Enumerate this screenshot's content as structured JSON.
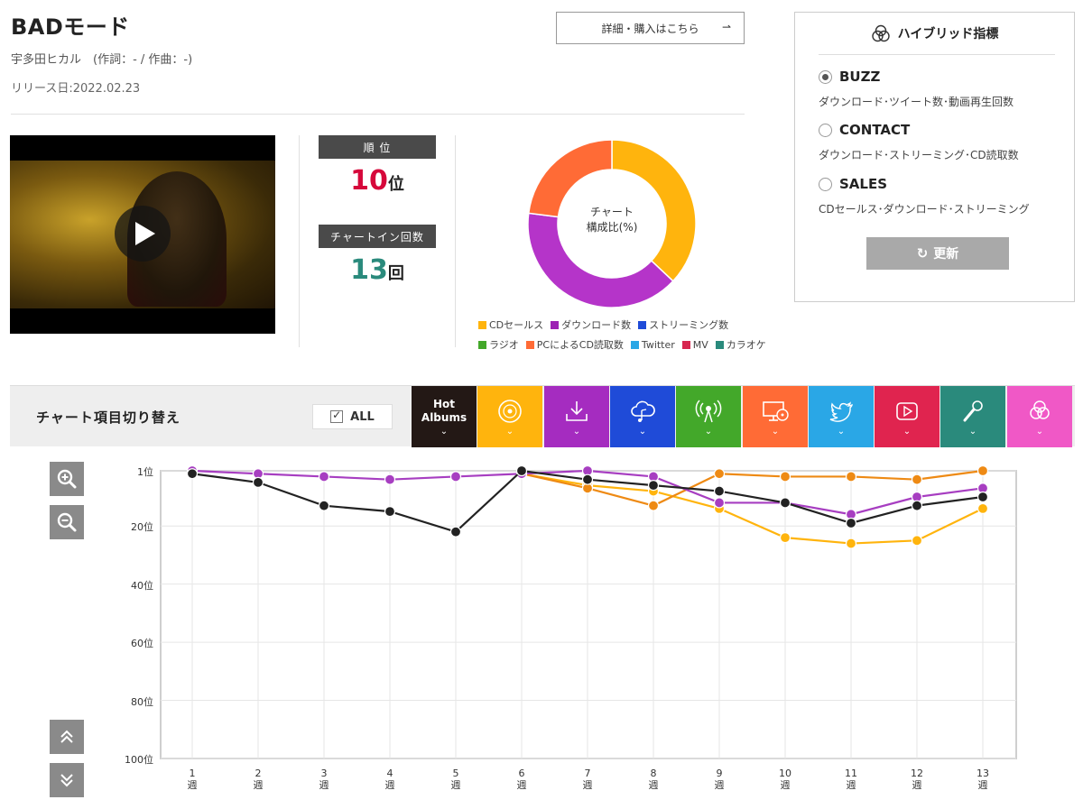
{
  "song": {
    "title": "BADモード",
    "artist_line": "宇多田ヒカル　(作詞：- / 作曲：-)",
    "release": "リリース日:2022.02.23"
  },
  "detail_button": {
    "label": "詳細・購入はこちら",
    "arrow": "⇀"
  },
  "stats": {
    "rank_label": "順 位",
    "rank_value": "10",
    "rank_unit": "位",
    "chartin_label": "チャートイン回数",
    "chartin_value": "13",
    "chartin_unit": "回",
    "rank_color": "#d6083b",
    "chartin_color": "#2a8a7c"
  },
  "donut": {
    "center_line1": "チャート",
    "center_line2": "構成比(%)",
    "slices": [
      {
        "label": "CDセールス",
        "value": 37,
        "color": "#ffb40d"
      },
      {
        "label": "ダウンロード数",
        "value": 40,
        "color": "#b534c9"
      },
      {
        "label": "PCによるCD読取数",
        "value": 23,
        "color": "#ff6b36"
      }
    ]
  },
  "legend": [
    [
      {
        "label": "CDセールス",
        "color": "#ffb40d"
      },
      {
        "label": "ダウンロード数",
        "color": "#9d22b4"
      },
      {
        "label": "ストリーミング数",
        "color": "#1f4bd8"
      }
    ],
    [
      {
        "label": "ラジオ",
        "color": "#43a82a"
      },
      {
        "label": "PCによるCD読取数",
        "color": "#ff6b36"
      },
      {
        "label": "Twitter",
        "color": "#2aa7e6"
      },
      {
        "label": "MV",
        "color": "#d7264f"
      },
      {
        "label": "カラオケ",
        "color": "#2a8a7c"
      }
    ]
  ],
  "hybrid": {
    "title": "ハイブリッド指標",
    "options": [
      {
        "name": "BUZZ",
        "desc": "ダウンロード･ツイート数･動画再生回数",
        "selected": true
      },
      {
        "name": "CONTACT",
        "desc": "ダウンロード･ストリーミング･CD読取数",
        "selected": false
      },
      {
        "name": "SALES",
        "desc": "CDセールス･ダウンロード･ストリーミング",
        "selected": false
      }
    ],
    "refresh_label": "更新"
  },
  "switcher": {
    "label": "チャート項目切り替え",
    "all_label": "ALL",
    "tiles": [
      {
        "name": "hot-albums",
        "text1": "Hot",
        "text2": "Albums",
        "color": "#231815",
        "icon": "text"
      },
      {
        "name": "cd-sales",
        "color": "#ffb40d",
        "icon": "cd-icon"
      },
      {
        "name": "download",
        "color": "#a52cc0",
        "icon": "download-icon"
      },
      {
        "name": "streaming",
        "color": "#1f4bd8",
        "icon": "cloud-music-icon"
      },
      {
        "name": "radio",
        "color": "#43a82a",
        "icon": "radio-icon"
      },
      {
        "name": "pc-cd-read",
        "color": "#ff6b36",
        "icon": "pc-cd-icon"
      },
      {
        "name": "twitter",
        "color": "#2aa7e6",
        "icon": "twitter-icon"
      },
      {
        "name": "mv",
        "color": "#e0244f",
        "icon": "play-icon"
      },
      {
        "name": "karaoke",
        "color": "#2a8a7c",
        "icon": "mic-icon"
      },
      {
        "name": "hybrid",
        "color": "#f058c6",
        "icon": "hybrid-icon"
      }
    ]
  },
  "chart_data": {
    "type": "line",
    "y_axis": {
      "reversed": true,
      "ylim": [
        1,
        100
      ],
      "ticks": [
        "1位",
        "20位",
        "40位",
        "60位",
        "80位",
        "100位"
      ],
      "tick_values": [
        1,
        20,
        40,
        60,
        80,
        100
      ]
    },
    "x_ticks": [
      [
        "1",
        "週"
      ],
      [
        "2",
        "週"
      ],
      [
        "3",
        "週"
      ],
      [
        "4",
        "週"
      ],
      [
        "5",
        "週"
      ],
      [
        "6",
        "週"
      ],
      [
        "7",
        "週"
      ],
      [
        "8",
        "週"
      ],
      [
        "9",
        "週"
      ],
      [
        "10",
        "週"
      ],
      [
        "11",
        "週"
      ],
      [
        "12",
        "週"
      ],
      [
        "13",
        "週"
      ]
    ],
    "x": [
      1,
      2,
      3,
      4,
      5,
      6,
      7,
      8,
      9,
      10,
      11,
      12,
      13
    ],
    "grid": true,
    "series": [
      {
        "color": "#ffb40d",
        "values": [
          null,
          null,
          null,
          null,
          null,
          2,
          6,
          8,
          14,
          24,
          26,
          25,
          14
        ]
      },
      {
        "color": "#ee8a14",
        "values": [
          null,
          null,
          null,
          null,
          null,
          2,
          7,
          13,
          2,
          3,
          3,
          4,
          1
        ]
      },
      {
        "color": "#a73ec1",
        "values": [
          1,
          2,
          3,
          4,
          3,
          2,
          1,
          3,
          12,
          12,
          16,
          10,
          7
        ]
      },
      {
        "color": "#222222",
        "values": [
          2,
          5,
          13,
          15,
          22,
          1,
          4,
          6,
          8,
          12,
          19,
          13,
          10
        ]
      }
    ]
  }
}
